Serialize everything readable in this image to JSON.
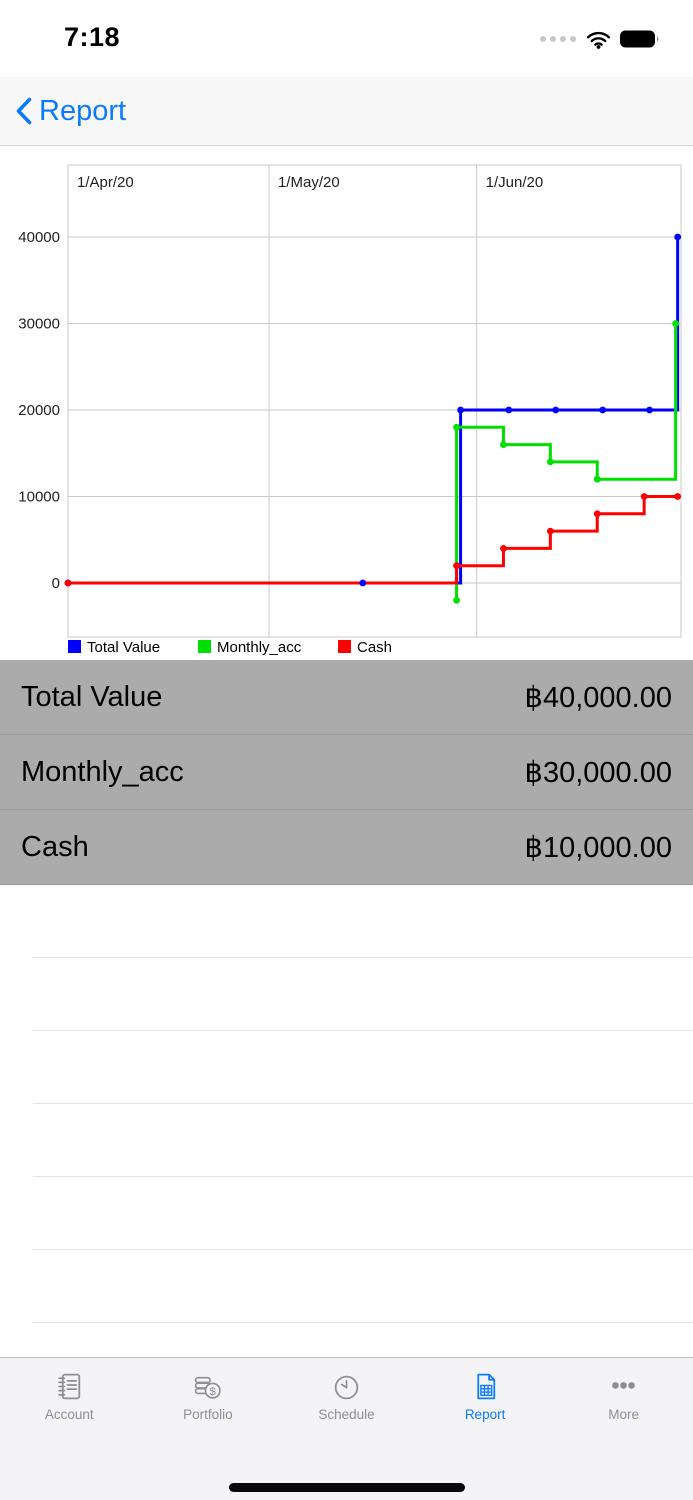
{
  "status_bar": {
    "time": "7:18"
  },
  "nav": {
    "back_label": "Report"
  },
  "chart_data": {
    "type": "line",
    "style": "step",
    "x_axis": {
      "labels": [
        "1/Apr/20",
        "1/May/20",
        "1/Jun/20"
      ],
      "label_days": [
        0,
        30,
        61
      ],
      "domain_days": [
        0,
        91.5
      ],
      "unit": "days from 1/Apr/20"
    },
    "y_axis": {
      "ticks": [
        0,
        10000,
        20000,
        30000,
        40000
      ],
      "range": [
        -6200,
        48400
      ]
    },
    "grid": true,
    "legend_position": "bottom-left",
    "series": [
      {
        "name": "Total Value",
        "color": "#0000ff",
        "points": [
          [
            0,
            0
          ],
          [
            44,
            0
          ],
          [
            58.6,
            20000
          ],
          [
            65.8,
            20000
          ],
          [
            72.8,
            20000
          ],
          [
            79.8,
            20000
          ],
          [
            86.8,
            20000
          ],
          [
            91,
            40000
          ]
        ]
      },
      {
        "name": "Monthly_acc",
        "color": "#00e000",
        "points": [
          [
            58,
            -2000
          ],
          [
            58,
            18000
          ],
          [
            65,
            16000
          ],
          [
            72,
            14000
          ],
          [
            79,
            12000
          ],
          [
            90.7,
            30000
          ]
        ]
      },
      {
        "name": "Cash",
        "color": "#ff0000",
        "points": [
          [
            0,
            0
          ],
          [
            58,
            2000
          ],
          [
            65,
            4000
          ],
          [
            72,
            6000
          ],
          [
            79,
            8000
          ],
          [
            86,
            10000
          ],
          [
            91,
            10000
          ]
        ]
      }
    ]
  },
  "summary": {
    "rows": [
      {
        "label": "Total Value",
        "value": "฿40,000.00"
      },
      {
        "label": "Monthly_acc",
        "value": "฿30,000.00"
      },
      {
        "label": "Cash",
        "value": "฿10,000.00"
      }
    ]
  },
  "tab_bar": {
    "items": [
      {
        "label": "Account",
        "icon": "journal-icon",
        "active": false
      },
      {
        "label": "Portfolio",
        "icon": "coins-icon",
        "active": false
      },
      {
        "label": "Schedule",
        "icon": "clock-icon",
        "active": false
      },
      {
        "label": "Report",
        "icon": "report-document-icon",
        "active": true
      },
      {
        "label": "More",
        "icon": "ellipsis-icon",
        "active": false
      }
    ]
  },
  "colors": {
    "accent": "#0a7aff",
    "summary_bg": "#ababab",
    "tab_inactive": "#8e8e93"
  }
}
